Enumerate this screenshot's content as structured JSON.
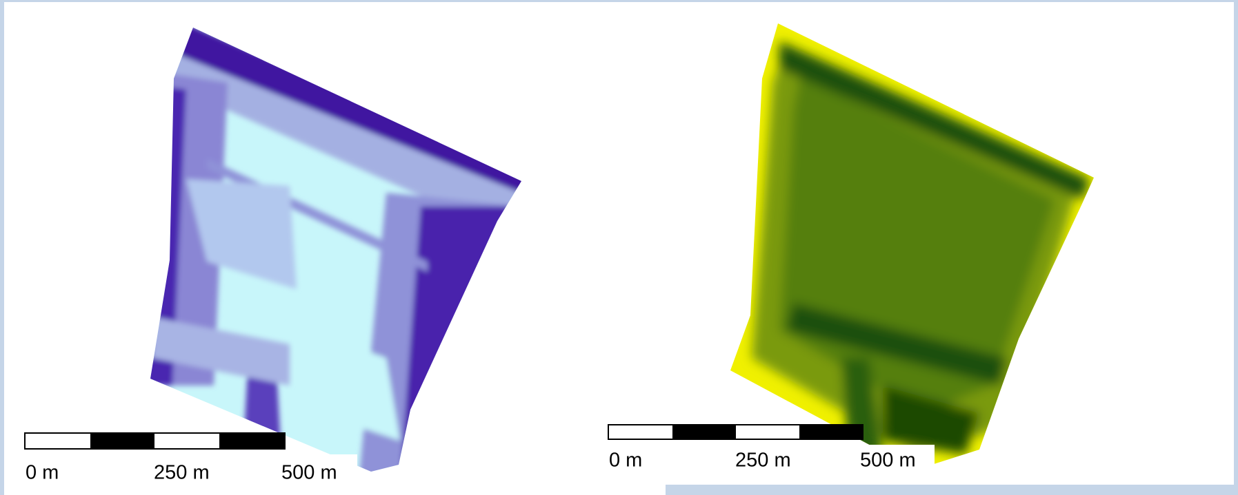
{
  "maps": [
    {
      "scale_labels": [
        "0 m",
        "250 m",
        "500 m"
      ]
    },
    {
      "scale_labels": [
        "0 m",
        "250 m",
        "500 m"
      ]
    }
  ]
}
